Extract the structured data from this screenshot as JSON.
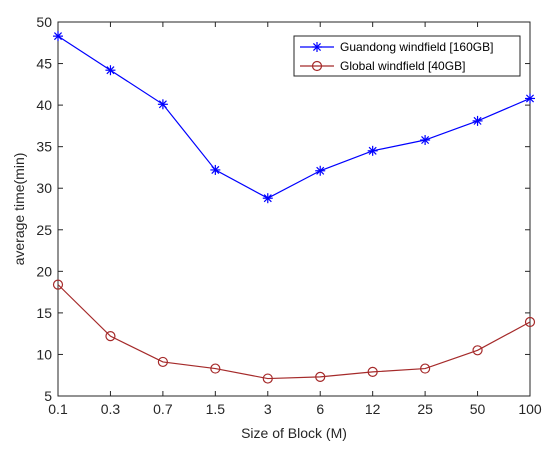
{
  "chart_data": {
    "type": "line",
    "x": [
      "0.1",
      "0.3",
      "0.7",
      "1.5",
      "3",
      "6",
      "12",
      "25",
      "50",
      "100"
    ],
    "xlabel": "Size of Block (M)",
    "ylabel": "average time(min)",
    "ylim": [
      5,
      50
    ],
    "yticks": [
      "5",
      "10",
      "15",
      "20",
      "25",
      "30",
      "35",
      "40",
      "45",
      "50"
    ],
    "grid": false,
    "legend_position": "top-right",
    "series": [
      {
        "name": "Guandong windfield [160GB]",
        "color": "#0000ff",
        "marker": "asterisk",
        "values": [
          48.3,
          44.2,
          40.1,
          32.2,
          28.8,
          32.1,
          34.5,
          35.8,
          38.1,
          40.8
        ]
      },
      {
        "name": "Global windfield [40GB]",
        "color": "#a52a2a",
        "marker": "circle",
        "values": [
          18.4,
          12.2,
          9.1,
          8.3,
          7.1,
          7.3,
          7.9,
          8.3,
          10.5,
          13.9
        ]
      }
    ]
  }
}
